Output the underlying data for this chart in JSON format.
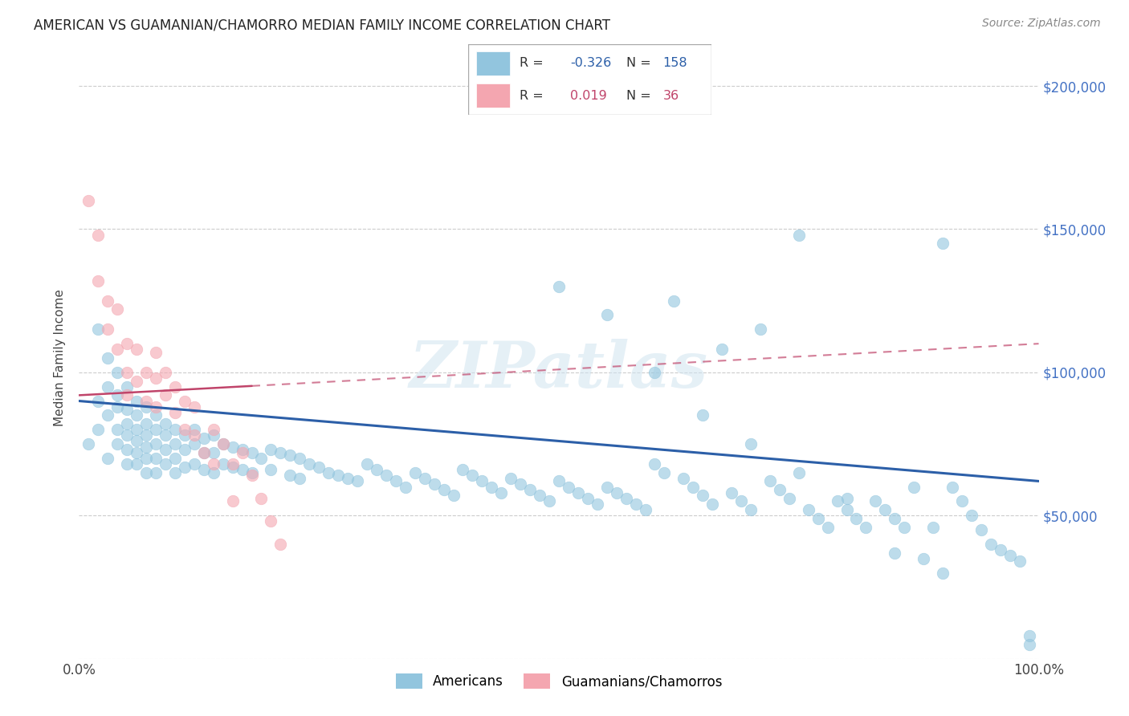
{
  "title": "AMERICAN VS GUAMANIAN/CHAMORRO MEDIAN FAMILY INCOME CORRELATION CHART",
  "source": "Source: ZipAtlas.com",
  "ylabel": "Median Family Income",
  "xlim": [
    0,
    1.0
  ],
  "ylim": [
    0,
    210000
  ],
  "yticks": [
    0,
    50000,
    100000,
    150000,
    200000
  ],
  "ytick_labels": [
    "",
    "$50,000",
    "$100,000",
    "$150,000",
    "$200,000"
  ],
  "xticks": [
    0,
    0.5,
    1.0
  ],
  "xtick_labels": [
    "0.0%",
    "",
    "100.0%"
  ],
  "blue_R": "-0.326",
  "blue_N": "158",
  "pink_R": "0.019",
  "pink_N": "36",
  "blue_color": "#92c5de",
  "pink_color": "#f4a6b0",
  "blue_line_color": "#2c5fa8",
  "pink_line_color": "#c0446a",
  "watermark": "ZIPatlas",
  "legend_label_blue": "Americans",
  "legend_label_pink": "Guamanians/Chamorros",
  "blue_R_color": "#2c5fa8",
  "blue_N_color": "#2c5fa8",
  "pink_R_color": "#c0446a",
  "pink_N_color": "#c0446a",
  "blue_scatter_x": [
    0.01,
    0.02,
    0.02,
    0.02,
    0.03,
    0.03,
    0.03,
    0.03,
    0.04,
    0.04,
    0.04,
    0.04,
    0.04,
    0.05,
    0.05,
    0.05,
    0.05,
    0.05,
    0.05,
    0.06,
    0.06,
    0.06,
    0.06,
    0.06,
    0.06,
    0.07,
    0.07,
    0.07,
    0.07,
    0.07,
    0.07,
    0.08,
    0.08,
    0.08,
    0.08,
    0.08,
    0.09,
    0.09,
    0.09,
    0.09,
    0.1,
    0.1,
    0.1,
    0.1,
    0.11,
    0.11,
    0.11,
    0.12,
    0.12,
    0.12,
    0.13,
    0.13,
    0.13,
    0.14,
    0.14,
    0.14,
    0.15,
    0.15,
    0.16,
    0.16,
    0.17,
    0.17,
    0.18,
    0.18,
    0.19,
    0.2,
    0.2,
    0.21,
    0.22,
    0.22,
    0.23,
    0.23,
    0.24,
    0.25,
    0.26,
    0.27,
    0.28,
    0.29,
    0.3,
    0.31,
    0.32,
    0.33,
    0.34,
    0.35,
    0.36,
    0.37,
    0.38,
    0.39,
    0.4,
    0.41,
    0.42,
    0.43,
    0.44,
    0.45,
    0.46,
    0.47,
    0.48,
    0.49,
    0.5,
    0.51,
    0.52,
    0.53,
    0.54,
    0.55,
    0.56,
    0.57,
    0.58,
    0.59,
    0.6,
    0.61,
    0.62,
    0.63,
    0.64,
    0.65,
    0.66,
    0.67,
    0.68,
    0.69,
    0.7,
    0.71,
    0.72,
    0.73,
    0.74,
    0.75,
    0.76,
    0.77,
    0.78,
    0.79,
    0.8,
    0.81,
    0.82,
    0.83,
    0.84,
    0.85,
    0.86,
    0.87,
    0.88,
    0.89,
    0.9,
    0.91,
    0.92,
    0.93,
    0.94,
    0.95,
    0.96,
    0.97,
    0.98,
    0.99,
    0.5,
    0.55,
    0.6,
    0.65,
    0.7,
    0.75,
    0.8,
    0.85,
    0.9,
    0.99
  ],
  "blue_scatter_y": [
    75000,
    90000,
    80000,
    115000,
    105000,
    95000,
    85000,
    70000,
    100000,
    92000,
    88000,
    80000,
    75000,
    95000,
    87000,
    82000,
    78000,
    73000,
    68000,
    90000,
    85000,
    80000,
    76000,
    72000,
    68000,
    88000,
    82000,
    78000,
    74000,
    70000,
    65000,
    85000,
    80000,
    75000,
    70000,
    65000,
    82000,
    78000,
    73000,
    68000,
    80000,
    75000,
    70000,
    65000,
    78000,
    73000,
    67000,
    80000,
    75000,
    68000,
    77000,
    72000,
    66000,
    78000,
    72000,
    65000,
    75000,
    68000,
    74000,
    67000,
    73000,
    66000,
    72000,
    65000,
    70000,
    73000,
    66000,
    72000,
    71000,
    64000,
    70000,
    63000,
    68000,
    67000,
    65000,
    64000,
    63000,
    62000,
    68000,
    66000,
    64000,
    62000,
    60000,
    65000,
    63000,
    61000,
    59000,
    57000,
    66000,
    64000,
    62000,
    60000,
    58000,
    63000,
    61000,
    59000,
    57000,
    55000,
    62000,
    60000,
    58000,
    56000,
    54000,
    60000,
    58000,
    56000,
    54000,
    52000,
    68000,
    65000,
    125000,
    63000,
    60000,
    57000,
    54000,
    108000,
    58000,
    55000,
    52000,
    115000,
    62000,
    59000,
    56000,
    148000,
    52000,
    49000,
    46000,
    55000,
    52000,
    49000,
    46000,
    55000,
    52000,
    37000,
    46000,
    60000,
    35000,
    46000,
    145000,
    60000,
    55000,
    50000,
    45000,
    40000,
    38000,
    36000,
    34000,
    5000,
    130000,
    120000,
    100000,
    85000,
    75000,
    65000,
    56000,
    49000,
    30000,
    8000
  ],
  "pink_scatter_x": [
    0.01,
    0.02,
    0.02,
    0.03,
    0.03,
    0.04,
    0.04,
    0.05,
    0.05,
    0.05,
    0.06,
    0.06,
    0.07,
    0.07,
    0.08,
    0.08,
    0.08,
    0.09,
    0.09,
    0.1,
    0.1,
    0.11,
    0.11,
    0.12,
    0.12,
    0.13,
    0.14,
    0.14,
    0.15,
    0.16,
    0.16,
    0.17,
    0.18,
    0.19,
    0.2,
    0.21
  ],
  "pink_scatter_y": [
    160000,
    148000,
    132000,
    125000,
    115000,
    122000,
    108000,
    110000,
    100000,
    92000,
    108000,
    97000,
    100000,
    90000,
    107000,
    98000,
    88000,
    100000,
    92000,
    95000,
    86000,
    90000,
    80000,
    88000,
    78000,
    72000,
    80000,
    68000,
    75000,
    68000,
    55000,
    72000,
    64000,
    56000,
    48000,
    40000
  ],
  "blue_line_x0": 0.0,
  "blue_line_x1": 1.0,
  "blue_line_y0": 90000,
  "blue_line_y1": 62000,
  "pink_line_x0": 0.0,
  "pink_line_x1": 1.0,
  "pink_line_y0": 92000,
  "pink_line_y1": 110000
}
